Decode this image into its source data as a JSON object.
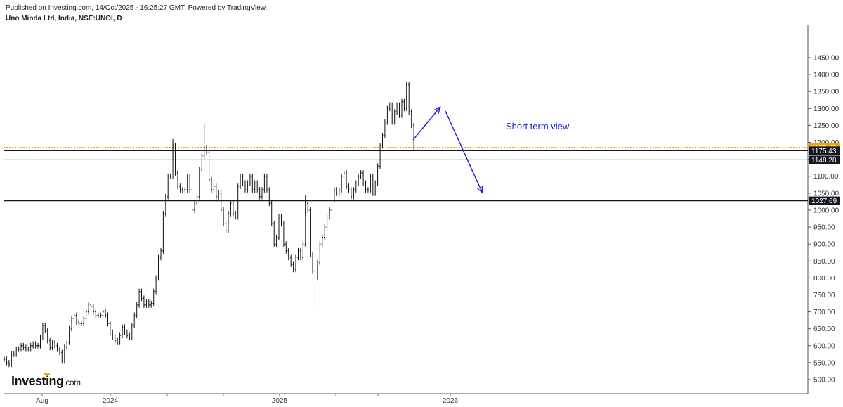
{
  "header": {
    "published": "Published on Investing.com, 14/Oct/2025 - 16:25:27 GMT, Powered by TradingView.",
    "symbol": "Uno Minda Ltd, India, NSE:UNOI, D"
  },
  "logo": {
    "main": "Investing",
    "suffix": ".com"
  },
  "chart_data": {
    "type": "line",
    "title": "Uno Minda Ltd, India, NSE:UNOI, D",
    "ylim": [
      470,
      1480
    ],
    "y_ticks": [
      "1450.00",
      "1400.00",
      "1350.00",
      "1300.00",
      "1250.00",
      "1200.00",
      "1150.00",
      "1100.00",
      "1050.00",
      "1000.00",
      "950.00",
      "900.00",
      "850.00",
      "800.00",
      "750.00",
      "700.00",
      "650.00",
      "600.00",
      "550.00",
      "500.00"
    ],
    "x_ticks": [
      "Aug",
      "2024",
      "2025",
      "2026"
    ],
    "series": [
      {
        "values": [
          [
            0,
            560
          ],
          [
            1,
            550
          ],
          [
            2,
            545
          ],
          [
            3,
            575
          ],
          [
            4,
            575
          ],
          [
            5,
            590
          ],
          [
            6,
            590
          ],
          [
            7,
            600
          ],
          [
            8,
            595
          ],
          [
            9,
            590
          ],
          [
            10,
            590
          ],
          [
            11,
            600
          ],
          [
            12,
            605
          ],
          [
            13,
            600
          ],
          [
            14,
            600
          ],
          [
            15,
            625
          ],
          [
            16,
            660
          ],
          [
            17,
            645
          ],
          [
            18,
            615
          ],
          [
            19,
            595
          ],
          [
            20,
            610
          ],
          [
            21,
            600
          ],
          [
            22,
            590
          ],
          [
            23,
            580
          ],
          [
            24,
            555
          ],
          [
            25,
            595
          ],
          [
            26,
            610
          ],
          [
            27,
            650
          ],
          [
            28,
            680
          ],
          [
            29,
            690
          ],
          [
            30,
            670
          ],
          [
            31,
            665
          ],
          [
            32,
            665
          ],
          [
            33,
            680
          ],
          [
            34,
            700
          ],
          [
            35,
            720
          ],
          [
            36,
            715
          ],
          [
            37,
            700
          ],
          [
            38,
            690
          ],
          [
            39,
            690
          ],
          [
            40,
            690
          ],
          [
            41,
            700
          ],
          [
            42,
            690
          ],
          [
            43,
            665
          ],
          [
            44,
            640
          ],
          [
            45,
            625
          ],
          [
            46,
            615
          ],
          [
            47,
            610
          ],
          [
            48,
            630
          ],
          [
            49,
            655
          ],
          [
            50,
            640
          ],
          [
            51,
            630
          ],
          [
            52,
            625
          ],
          [
            53,
            660
          ],
          [
            54,
            690
          ],
          [
            55,
            720
          ],
          [
            56,
            760
          ],
          [
            57,
            740
          ],
          [
            58,
            720
          ],
          [
            59,
            730
          ],
          [
            60,
            720
          ],
          [
            61,
            725
          ],
          [
            62,
            760
          ],
          [
            63,
            800
          ],
          [
            64,
            860
          ],
          [
            65,
            880
          ],
          [
            66,
            990
          ],
          [
            67,
            1040
          ],
          [
            68,
            1100
          ],
          [
            69,
            1100
          ],
          [
            70,
            1190
          ],
          [
            71,
            1110
          ],
          [
            72,
            1070
          ],
          [
            73,
            1060
          ],
          [
            74,
            1060
          ],
          [
            75,
            1060
          ],
          [
            76,
            1100
          ],
          [
            77,
            1060
          ],
          [
            78,
            1000
          ],
          [
            79,
            1020
          ],
          [
            80,
            1040
          ],
          [
            81,
            1120
          ],
          [
            82,
            1160
          ],
          [
            83,
            1185
          ],
          [
            84,
            1170
          ],
          [
            85,
            1090
          ],
          [
            86,
            1060
          ],
          [
            87,
            1070
          ],
          [
            88,
            1040
          ],
          [
            89,
            1050
          ],
          [
            90,
            1000
          ],
          [
            91,
            960
          ],
          [
            92,
            940
          ],
          [
            93,
            990
          ],
          [
            94,
            1020
          ],
          [
            95,
            990
          ],
          [
            96,
            980
          ],
          [
            97,
            1070
          ],
          [
            98,
            1100
          ],
          [
            99,
            1080
          ],
          [
            100,
            1060
          ],
          [
            101,
            1080
          ],
          [
            102,
            1100
          ],
          [
            103,
            1060
          ],
          [
            104,
            1080
          ],
          [
            105,
            1060
          ],
          [
            106,
            1040
          ],
          [
            107,
            1060
          ],
          [
            108,
            1100
          ],
          [
            109,
            1060
          ],
          [
            110,
            1020
          ],
          [
            111,
            960
          ],
          [
            112,
            900
          ],
          [
            113,
            920
          ],
          [
            114,
            980
          ],
          [
            115,
            960
          ],
          [
            116,
            900
          ],
          [
            117,
            880
          ],
          [
            118,
            860
          ],
          [
            119,
            840
          ],
          [
            120,
            825
          ],
          [
            121,
            860
          ],
          [
            122,
            880
          ],
          [
            123,
            860
          ],
          [
            124,
            900
          ],
          [
            125,
            1020
          ],
          [
            126,
            1000
          ],
          [
            127,
            870
          ],
          [
            128,
            820
          ],
          [
            129,
            800
          ],
          [
            130,
            845
          ],
          [
            131,
            900
          ],
          [
            132,
            920
          ],
          [
            133,
            950
          ],
          [
            134,
            980
          ],
          [
            135,
            1000
          ],
          [
            136,
            1030
          ],
          [
            137,
            1060
          ],
          [
            138,
            1050
          ],
          [
            139,
            1060
          ],
          [
            140,
            1100
          ],
          [
            141,
            1110
          ],
          [
            142,
            1070
          ],
          [
            143,
            1060
          ],
          [
            144,
            1040
          ],
          [
            145,
            1060
          ],
          [
            146,
            1080
          ],
          [
            147,
            1100
          ],
          [
            148,
            1110
          ],
          [
            149,
            1080
          ],
          [
            150,
            1060
          ],
          [
            151,
            1060
          ],
          [
            152,
            1100
          ],
          [
            153,
            1050
          ],
          [
            154,
            1080
          ],
          [
            155,
            1130
          ],
          [
            156,
            1190
          ],
          [
            157,
            1220
          ],
          [
            158,
            1260
          ],
          [
            159,
            1300
          ],
          [
            160,
            1310
          ],
          [
            161,
            1260
          ],
          [
            162,
            1290
          ],
          [
            163,
            1310
          ],
          [
            164,
            1280
          ],
          [
            165,
            1320
          ],
          [
            166,
            1300
          ],
          [
            167,
            1370
          ],
          [
            168,
            1290
          ],
          [
            169,
            1250
          ],
          [
            170,
            1185
          ]
        ]
      }
    ],
    "levels": [
      {
        "label": "1185.40",
        "value": 1185.4,
        "color": "#f0a500",
        "style": "dotted"
      },
      {
        "label": "1175.43",
        "value": 1175.43,
        "color": "#131722",
        "style": "solid"
      },
      {
        "label": "1148.28",
        "value": 1148.28,
        "color": "#131722",
        "style": "solid"
      },
      {
        "label": "1027.69",
        "value": 1027.69,
        "color": "#131722",
        "style": "solid"
      }
    ],
    "annotation": {
      "text": "Short term view",
      "color": "#1a1adb"
    },
    "arrows": [
      {
        "from": [
          171,
          1185
        ],
        "to": [
          190,
          1260
        ]
      },
      {
        "from": [
          193,
          1265
        ],
        "to": [
          214,
          1025
        ]
      }
    ]
  }
}
